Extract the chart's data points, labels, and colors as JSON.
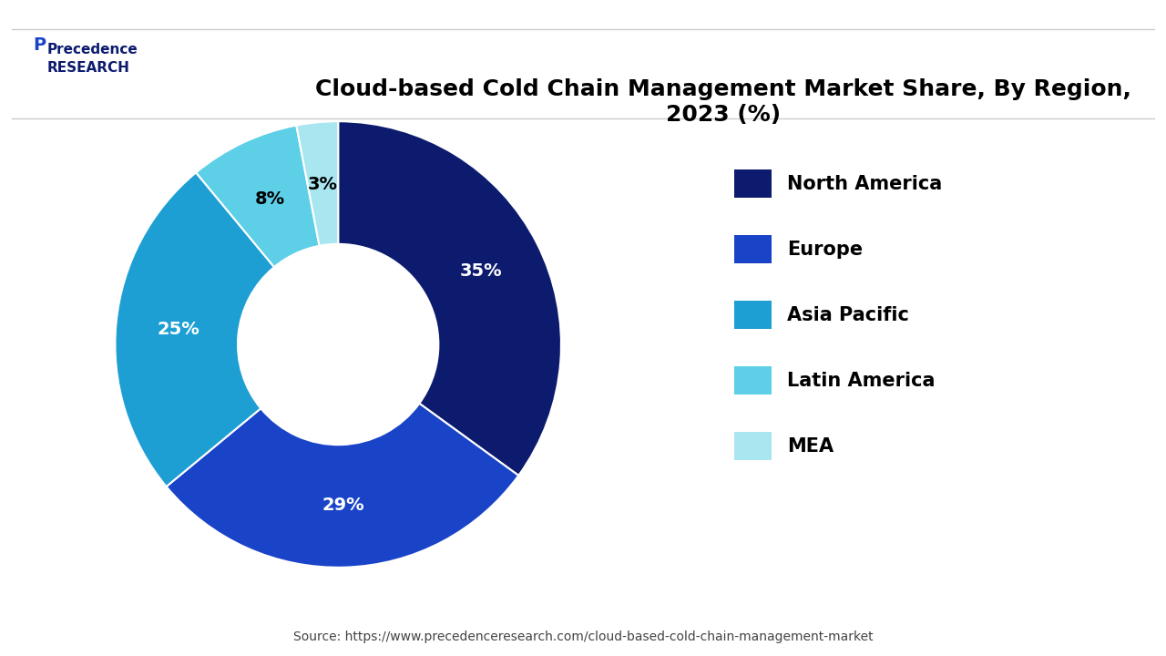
{
  "title": "Cloud-based Cold Chain Management Market Share, By Region,\n2023 (%)",
  "regions": [
    "North America",
    "Europe",
    "Asia Pacific",
    "Latin America",
    "MEA"
  ],
  "values": [
    35,
    29,
    25,
    8,
    3
  ],
  "colors": [
    "#0d1b6e",
    "#1a44c8",
    "#1e9fd4",
    "#5dd0e8",
    "#a8e6f0"
  ],
  "label_colors": [
    "white",
    "white",
    "white",
    "black",
    "black"
  ],
  "source": "Source: https://www.precedenceresearch.com/cloud-based-cold-chain-management-market",
  "background_color": "#ffffff",
  "start_angle": 90,
  "title_fontsize": 18,
  "legend_fontsize": 15,
  "label_fontsize": 14,
  "source_fontsize": 10
}
